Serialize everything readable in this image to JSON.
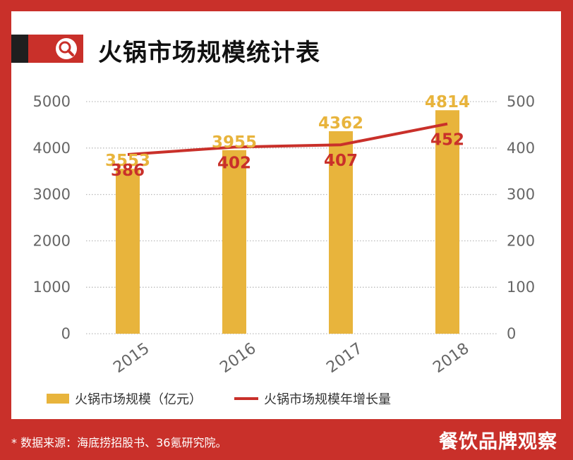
{
  "header": {
    "title": "火锅市场规模统计表",
    "search_icon": "search-icon"
  },
  "chart_data": {
    "type": "bar",
    "categories": [
      "2015",
      "2016",
      "2017",
      "2018"
    ],
    "series": [
      {
        "name": "火锅市场规模（亿元）",
        "type": "bar",
        "axis": "left",
        "values": [
          3553,
          3955,
          4362,
          4814
        ],
        "color": "#e8b43c"
      },
      {
        "name": "火锅市场规模年增长量",
        "type": "line",
        "axis": "right",
        "values": [
          386,
          402,
          407,
          452
        ],
        "color": "#c9302a"
      }
    ],
    "ylim_left": [
      0,
      5000
    ],
    "ylim_right": [
      0,
      500
    ],
    "yticks_left": [
      "0",
      "1000",
      "2000",
      "3000",
      "4000",
      "5000"
    ],
    "yticks_right": [
      "0",
      "100",
      "200",
      "300",
      "400",
      "500"
    ],
    "grid": "horizontal-dotted",
    "legend": "bottom"
  },
  "footer": {
    "footnote": "* 数据来源：海底捞招股书、36氪研究院。",
    "brand": "餐饮品牌观察"
  },
  "colors": {
    "background": "#c9302a",
    "bar": "#e8b43c",
    "line": "#c9302a",
    "bar_label": "#e8b43c",
    "line_label": "#c9302a"
  }
}
